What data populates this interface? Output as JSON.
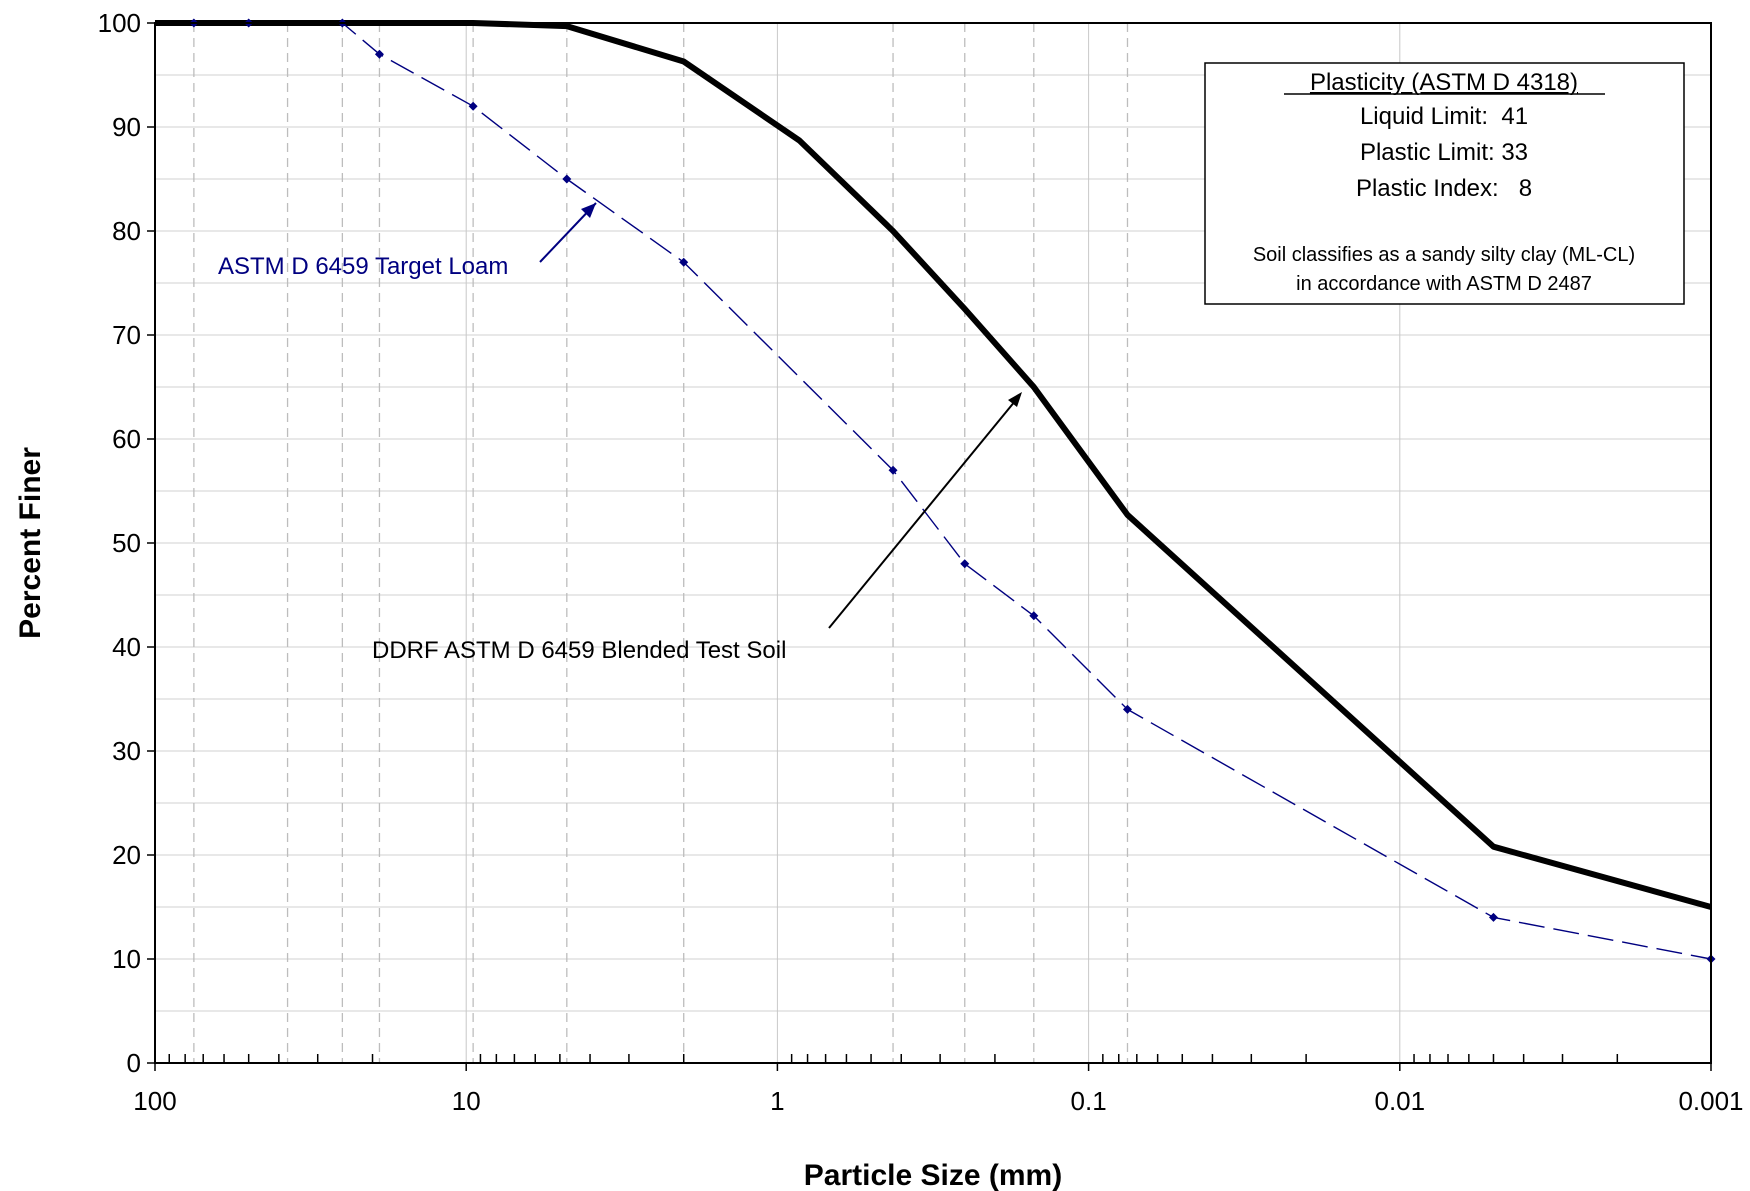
{
  "chart_data": {
    "type": "line",
    "xlabel": "Particle Size (mm)",
    "ylabel": "Percent Finer",
    "x_scale": "log",
    "x_reversed": true,
    "xlim": [
      100,
      0.001
    ],
    "ylim": [
      0,
      100
    ],
    "x_ticks": [
      100,
      10,
      1,
      0.1,
      0.01,
      0.001
    ],
    "x_tick_labels": [
      "100",
      "10",
      "1",
      "0.1",
      "0.01",
      "0.001"
    ],
    "y_ticks": [
      0,
      10,
      20,
      30,
      40,
      50,
      60,
      70,
      80,
      90,
      100
    ],
    "y_tick_labels": [
      "0",
      "10",
      "20",
      "30",
      "40",
      "50",
      "60",
      "70",
      "80",
      "90",
      "100"
    ],
    "grid": true,
    "sieve_gridlines_x": [
      75,
      37.5,
      25,
      19,
      9.5,
      4.75,
      2,
      0.425,
      0.25,
      0.15,
      0.075
    ],
    "series": [
      {
        "key": "blended",
        "color": "#000000",
        "style": "solid",
        "markers": false,
        "points": [
          {
            "x": 100,
            "y": 100
          },
          {
            "x": 75,
            "y": 100
          },
          {
            "x": 50,
            "y": 100
          },
          {
            "x": 25,
            "y": 100
          },
          {
            "x": 9.5,
            "y": 100
          },
          {
            "x": 4.75,
            "y": 99.7
          },
          {
            "x": 2,
            "y": 96.3
          },
          {
            "x": 0.85,
            "y": 88.7
          },
          {
            "x": 0.425,
            "y": 80
          },
          {
            "x": 0.25,
            "y": 72.5
          },
          {
            "x": 0.15,
            "y": 65
          },
          {
            "x": 0.075,
            "y": 52.7
          },
          {
            "x": 0.005,
            "y": 20.8
          },
          {
            "x": 0.001,
            "y": 15
          }
        ]
      },
      {
        "key": "target",
        "color": "#000080",
        "style": "dashed",
        "markers": true,
        "points": [
          {
            "x": 75,
            "y": 100
          },
          {
            "x": 50,
            "y": 100
          },
          {
            "x": 25,
            "y": 100
          },
          {
            "x": 19,
            "y": 97
          },
          {
            "x": 9.5,
            "y": 92
          },
          {
            "x": 4.75,
            "y": 85
          },
          {
            "x": 2,
            "y": 77
          },
          {
            "x": 0.425,
            "y": 57
          },
          {
            "x": 0.25,
            "y": 48
          },
          {
            "x": 0.15,
            "y": 43
          },
          {
            "x": 0.075,
            "y": 34
          },
          {
            "x": 0.005,
            "y": 14
          },
          {
            "x": 0.001,
            "y": 10
          }
        ]
      }
    ],
    "annotations": [
      {
        "key": "target_label",
        "text": "ASTM D 6459 Target Loam",
        "color": "#000080",
        "arrow_to": {
          "x": 4,
          "y": 83
        }
      },
      {
        "key": "blended_label",
        "text": "DDRF ASTM D 6459 Blended Test Soil",
        "color": "#000000",
        "arrow_to": {
          "x": 0.15,
          "y": 65
        }
      }
    ],
    "info_box": {
      "title": "Plasticity (ASTM D 4318)",
      "lines": [
        "Liquid Limit:  41",
        "Plastic Limit: 33",
        "Plastic Index:   8"
      ],
      "note_lines": [
        "Soil classifies as a sandy silty clay (ML-CL)",
        "in accordance with ASTM D 2487"
      ]
    }
  }
}
